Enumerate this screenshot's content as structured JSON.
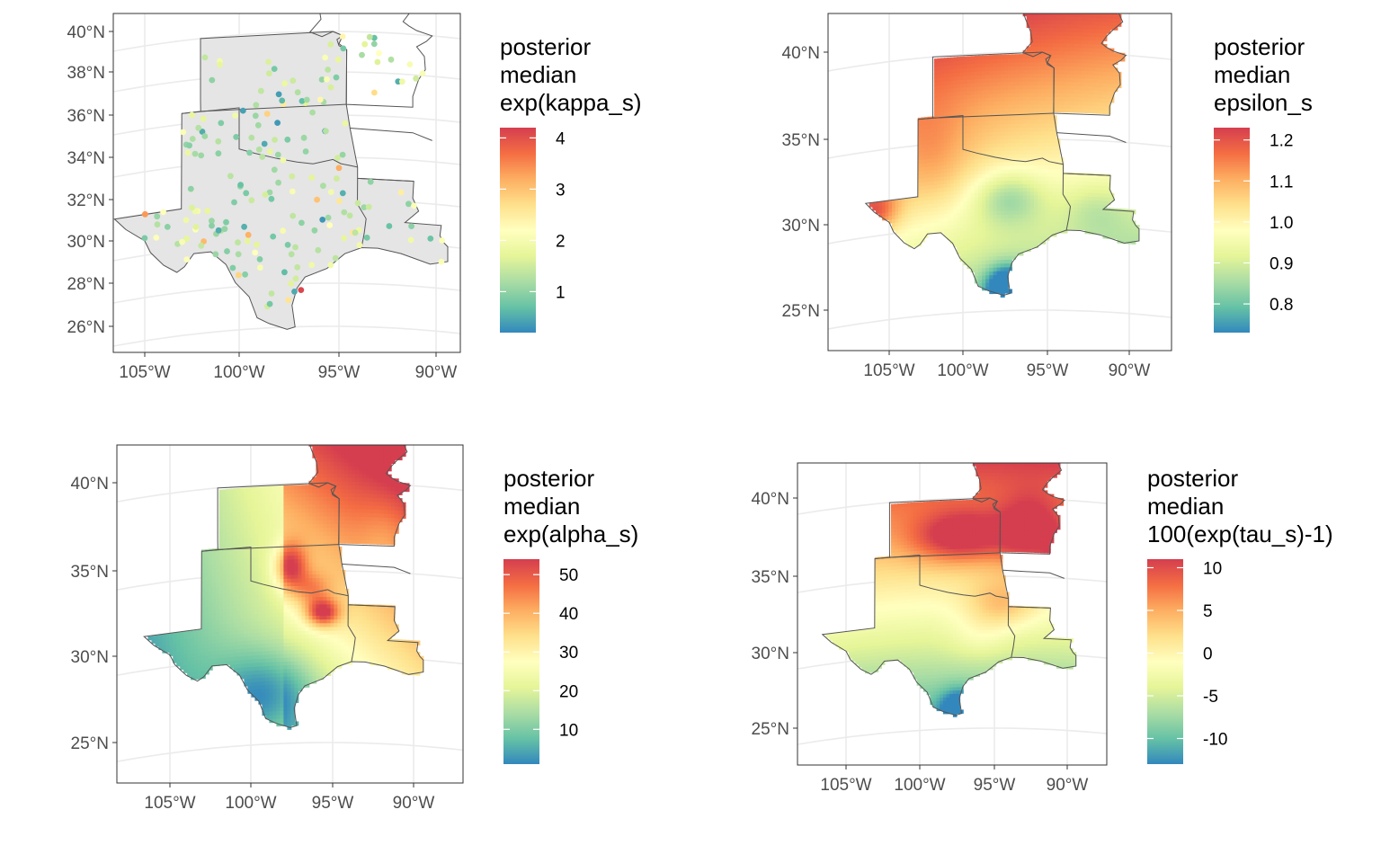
{
  "colors": {
    "palette": [
      "#3288bd",
      "#66c2a5",
      "#abdda4",
      "#e6f598",
      "#ffffbf",
      "#fee08b",
      "#fdae61",
      "#f46d43",
      "#d53e4f"
    ],
    "state_fill": "#e5e5e5",
    "state_border": "#555555",
    "graticule": "#ebebeb",
    "panel_border": "#333333"
  },
  "panels": [
    {
      "id": "kappa",
      "type": "points",
      "lat_labels": [
        "40°N",
        "38°N",
        "36°N",
        "34°N",
        "32°N",
        "30°N",
        "28°N",
        "26°N"
      ],
      "lat_values": [
        40,
        38,
        36,
        34,
        32,
        30,
        28,
        26
      ],
      "lon_labels": [
        "105°W",
        "100°W",
        "95°W",
        "90°W"
      ],
      "lon_values": [
        -105,
        -100,
        -95,
        -90
      ],
      "legend": {
        "title_lines": [
          "posterior",
          "median",
          "exp(kappa_s)"
        ],
        "labels": [
          "4",
          "3",
          "2",
          "1"
        ],
        "values": [
          4,
          3,
          2,
          1
        ],
        "min": 0.2,
        "max": 4.2
      }
    },
    {
      "id": "epsilon",
      "type": "field",
      "lat_labels": [
        "40°N",
        "35°N",
        "30°N",
        "25°N"
      ],
      "lat_values": [
        40,
        35,
        30,
        25
      ],
      "lon_labels": [
        "105°W",
        "100°W",
        "95°W",
        "90°W"
      ],
      "lon_values": [
        -105,
        -100,
        -95,
        -90
      ],
      "legend": {
        "title_lines": [
          "posterior",
          "median",
          "epsilon_s"
        ],
        "labels": [
          "1.2",
          "1.1",
          "1.0",
          "0.9",
          "0.8"
        ],
        "values": [
          1.2,
          1.1,
          1.0,
          0.9,
          0.8
        ],
        "min": 0.73,
        "max": 1.23
      }
    },
    {
      "id": "alpha",
      "type": "field",
      "lat_labels": [
        "40°N",
        "35°N",
        "30°N",
        "25°N"
      ],
      "lat_values": [
        40,
        35,
        30,
        25
      ],
      "lon_labels": [
        "105°W",
        "100°W",
        "95°W",
        "90°W"
      ],
      "lon_values": [
        -105,
        -100,
        -95,
        -90
      ],
      "legend": {
        "title_lines": [
          "posterior",
          "median",
          "exp(alpha_s)"
        ],
        "labels": [
          "50",
          "40",
          "30",
          "20",
          "10"
        ],
        "values": [
          50,
          40,
          30,
          20,
          10
        ],
        "min": 1,
        "max": 54
      }
    },
    {
      "id": "tau",
      "type": "field",
      "lat_labels": [
        "40°N",
        "35°N",
        "30°N",
        "25°N"
      ],
      "lat_values": [
        40,
        35,
        30,
        25
      ],
      "lon_labels": [
        "105°W",
        "100°W",
        "95°W",
        "90°W"
      ],
      "lon_values": [
        -105,
        -100,
        -95,
        -90
      ],
      "legend": {
        "title_lines": [
          "posterior",
          "median",
          "100(exp(tau_s)-1)"
        ],
        "labels": [
          "10",
          "5",
          "0",
          "-5",
          "-10"
        ],
        "values": [
          10,
          5,
          0,
          -5,
          -10
        ],
        "min": -13,
        "max": 11
      }
    }
  ]
}
